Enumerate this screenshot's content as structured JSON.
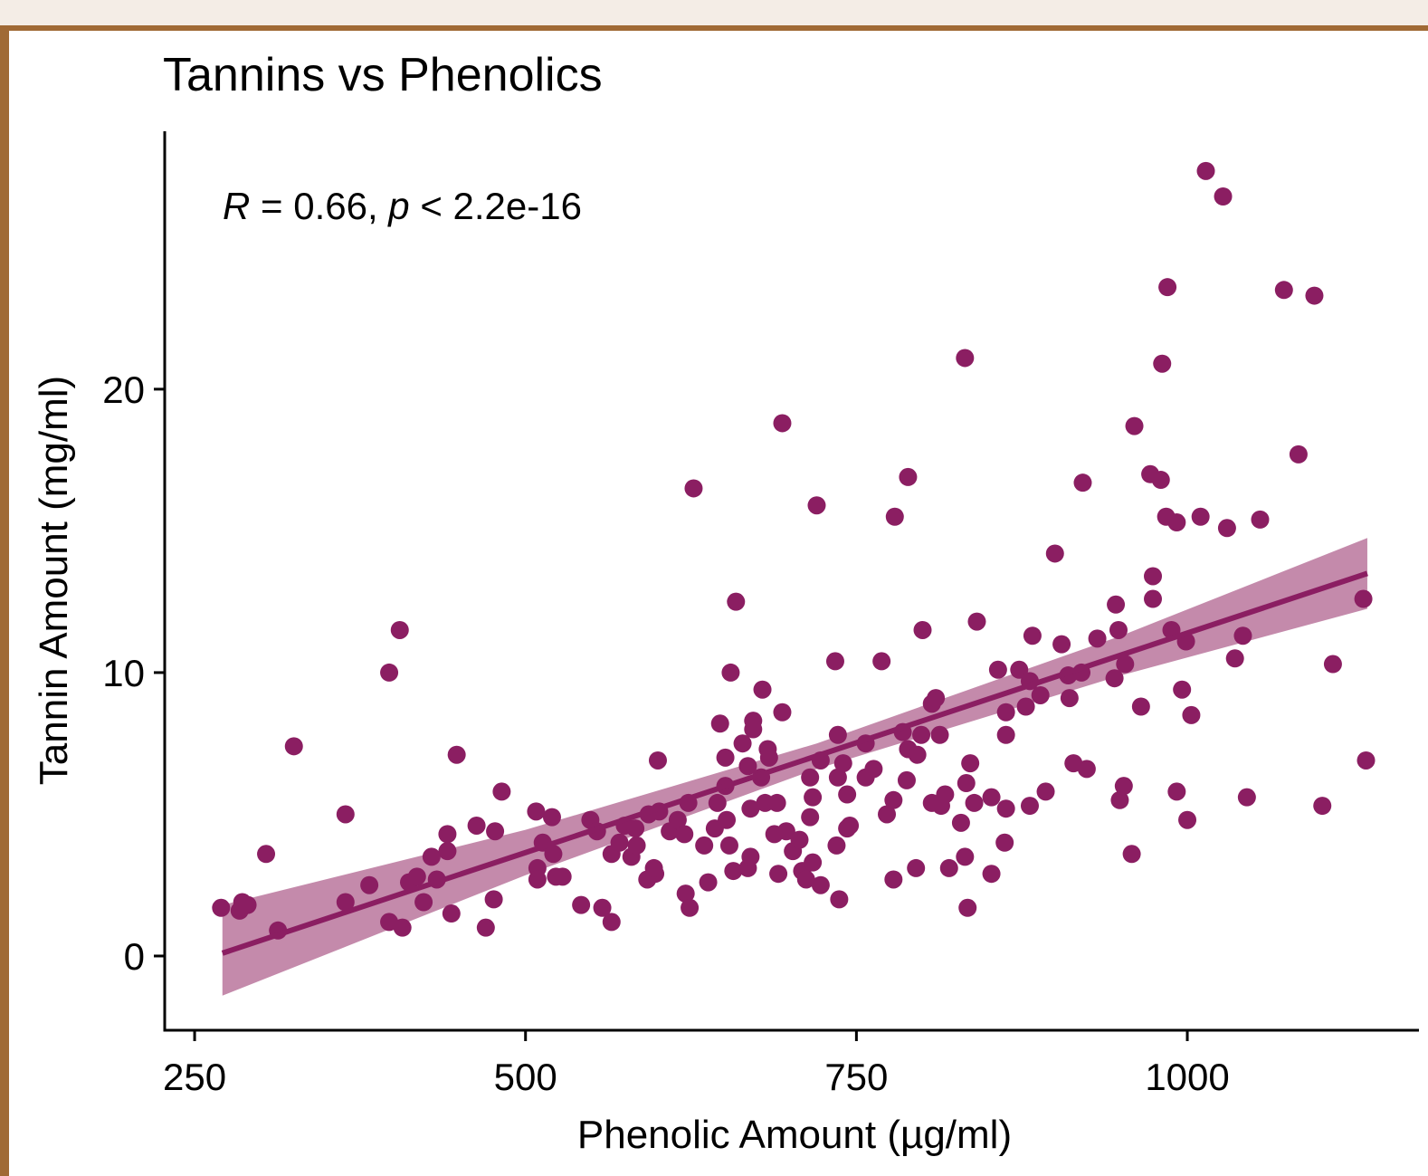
{
  "chart_data": {
    "type": "scatter",
    "title": "Tannins vs Phenolics",
    "x_label": "Phenolic Amount (µg/ml)",
    "y_label": "Tannin Amount (mg/ml)",
    "annotation": [
      "R",
      " = 0.66, ",
      "p",
      " < 2.2e-16"
    ],
    "color": "#8b1e62",
    "band_color": "#c48aab",
    "xlim": [
      227.4,
      1175
    ],
    "ylim": [
      -2.62,
      29.1
    ],
    "xticks": [
      250,
      500,
      750,
      1000
    ],
    "yticks": [
      0,
      10,
      20
    ],
    "x": [
      270,
      284,
      286,
      290,
      304,
      313,
      325,
      364,
      364,
      382,
      397,
      405,
      397,
      407,
      412,
      418,
      423,
      429,
      433,
      441,
      441,
      444,
      448,
      463,
      470,
      476,
      477,
      482,
      508,
      509,
      509,
      513,
      520,
      521,
      523,
      528,
      542,
      549,
      554,
      558,
      565,
      565,
      571,
      575,
      580,
      583,
      584,
      592,
      593,
      598,
      597,
      600,
      601,
      609,
      615,
      620,
      621,
      623,
      624,
      627,
      635,
      638,
      643,
      645,
      647,
      651,
      651,
      652,
      654,
      655,
      657,
      659,
      664,
      668,
      668,
      670,
      670,
      672,
      672,
      678,
      679,
      681,
      683,
      684,
      688,
      690,
      691,
      694,
      694,
      697,
      702,
      707,
      709,
      712,
      715,
      715,
      717,
      717,
      720,
      723,
      723,
      734,
      735,
      736,
      736,
      737,
      740,
      743,
      743,
      745,
      757,
      757,
      763,
      769,
      773,
      778,
      778,
      779,
      785,
      788,
      789,
      789,
      795,
      796,
      799,
      800,
      807,
      810,
      807,
      813,
      814,
      817,
      820,
      829,
      832,
      832,
      833,
      834,
      836,
      839,
      841,
      852,
      852,
      857,
      862,
      863,
      863,
      863,
      873,
      878,
      881,
      883,
      881,
      889,
      893,
      900,
      905,
      910,
      911,
      914,
      920,
      921,
      924,
      932,
      945,
      946,
      948,
      949,
      952,
      953,
      958,
      960,
      965,
      972,
      974,
      974,
      980,
      981,
      984,
      985,
      988,
      992,
      992,
      996,
      999,
      1000,
      1003,
      1010,
      1014,
      1027,
      1030,
      1036,
      1042,
      1045,
      1055,
      1073,
      1084,
      1096,
      1102,
      1110,
      1133,
      1135
    ],
    "values": [
      1.7,
      1.6,
      1.9,
      1.8,
      3.6,
      0.9,
      7.4,
      1.9,
      5.0,
      2.5,
      10.0,
      11.5,
      1.2,
      1.0,
      2.6,
      2.8,
      1.9,
      3.5,
      2.7,
      4.3,
      3.7,
      1.5,
      7.1,
      4.6,
      1.0,
      2.0,
      4.4,
      5.8,
      5.1,
      3.1,
      2.7,
      4.0,
      4.9,
      3.6,
      2.8,
      2.8,
      1.8,
      4.8,
      4.4,
      1.7,
      1.2,
      3.6,
      4.0,
      4.6,
      3.5,
      4.5,
      3.9,
      2.7,
      5.0,
      2.9,
      3.1,
      6.9,
      5.1,
      4.4,
      4.8,
      4.3,
      2.2,
      5.4,
      1.7,
      16.5,
      3.9,
      2.6,
      4.5,
      5.4,
      8.2,
      7.0,
      6.0,
      4.8,
      3.9,
      10.0,
      3.0,
      12.5,
      7.5,
      3.1,
      6.7,
      5.2,
      3.5,
      8.3,
      8.0,
      6.3,
      9.4,
      5.4,
      7.3,
      7.0,
      4.3,
      5.4,
      2.9,
      8.6,
      18.8,
      4.4,
      3.7,
      4.1,
      3.0,
      2.7,
      6.3,
      4.9,
      5.6,
      3.3,
      15.9,
      6.9,
      2.5,
      10.4,
      3.9,
      7.8,
      6.3,
      2.0,
      6.8,
      5.7,
      4.5,
      4.6,
      7.5,
      6.3,
      6.6,
      10.4,
      5.0,
      2.7,
      5.5,
      15.5,
      7.9,
      6.2,
      16.9,
      7.3,
      3.1,
      7.1,
      7.8,
      11.5,
      8.9,
      9.1,
      5.4,
      7.8,
      5.3,
      5.7,
      3.1,
      4.7,
      21.1,
      3.5,
      6.1,
      1.7,
      6.8,
      5.4,
      11.8,
      2.9,
      5.6,
      10.1,
      4.0,
      7.8,
      8.6,
      5.2,
      10.1,
      8.8,
      5.3,
      11.3,
      9.7,
      9.2,
      5.8,
      14.2,
      11.0,
      9.9,
      9.1,
      6.8,
      10.0,
      16.7,
      6.6,
      11.2,
      9.8,
      12.4,
      11.5,
      5.5,
      6.0,
      10.3,
      3.6,
      18.7,
      8.8,
      17.0,
      13.4,
      12.6,
      16.8,
      20.9,
      15.5,
      23.6,
      11.5,
      15.3,
      5.8,
      9.4,
      11.1,
      4.8,
      8.5,
      15.5,
      27.7,
      26.8,
      15.1,
      10.5,
      11.3,
      5.6,
      15.4,
      23.5,
      17.7,
      23.3,
      5.3,
      10.3,
      12.6,
      6.9
    ],
    "fit": {
      "x": [
        271,
        500,
        720,
        950,
        1136
      ],
      "y": [
        0.1,
        3.65,
        7.06,
        10.62,
        13.5
      ],
      "lower": [
        -1.4,
        2.85,
        6.6,
        9.9,
        12.25
      ],
      "upper": [
        1.8,
        4.45,
        7.5,
        11.3,
        14.75
      ]
    }
  }
}
